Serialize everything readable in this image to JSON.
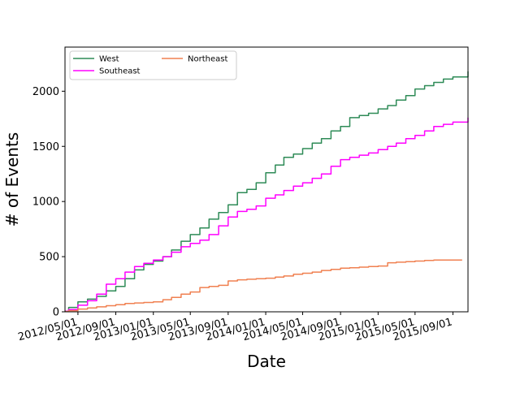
{
  "chart_data": {
    "type": "line",
    "title": "",
    "xlabel": "Date",
    "ylabel": "# of Events",
    "x_ticks": [
      "2012/05/01",
      "2012/09/01",
      "2013/01/01",
      "2013/05/01",
      "2013/09/01",
      "2014/01/01",
      "2014/05/01",
      "2014/09/01",
      "2015/01/01",
      "2015/05/01",
      "2015/09/01"
    ],
    "y_ticks": [
      "0",
      "500",
      "1000",
      "1500",
      "2000"
    ],
    "xlim": [
      "2012-03-20",
      "2015-10-20"
    ],
    "ylim": [
      0,
      2400
    ],
    "grid": false,
    "legend": {
      "placement": "top-left",
      "columns": 2
    },
    "series": [
      {
        "name": "West",
        "color": "#2e8b57",
        "x": [
          "2012-03-20",
          "2012-04-01",
          "2012-05-01",
          "2012-06-01",
          "2012-07-01",
          "2012-08-01",
          "2012-09-01",
          "2012-10-01",
          "2012-11-01",
          "2012-12-01",
          "2013-01-01",
          "2013-02-01",
          "2013-03-01",
          "2013-04-01",
          "2013-05-01",
          "2013-06-01",
          "2013-07-01",
          "2013-08-01",
          "2013-09-01",
          "2013-10-01",
          "2013-11-01",
          "2013-12-01",
          "2014-01-01",
          "2014-02-01",
          "2014-03-01",
          "2014-04-01",
          "2014-05-01",
          "2014-06-01",
          "2014-07-01",
          "2014-08-01",
          "2014-09-01",
          "2014-10-01",
          "2014-11-01",
          "2014-12-01",
          "2015-01-01",
          "2015-02-01",
          "2015-03-01",
          "2015-04-01",
          "2015-05-01",
          "2015-06-01",
          "2015-07-01",
          "2015-08-01",
          "2015-09-01",
          "2015-10-20"
        ],
        "values": [
          5,
          40,
          90,
          115,
          140,
          190,
          230,
          300,
          380,
          430,
          460,
          500,
          560,
          640,
          700,
          760,
          840,
          900,
          970,
          1080,
          1110,
          1170,
          1260,
          1330,
          1400,
          1430,
          1480,
          1530,
          1570,
          1640,
          1680,
          1760,
          1780,
          1800,
          1840,
          1870,
          1920,
          1960,
          2020,
          2050,
          2080,
          2110,
          2130,
          2180
        ]
      },
      {
        "name": "Southeast",
        "color": "#ff00ff",
        "x": [
          "2012-03-20",
          "2012-04-01",
          "2012-05-01",
          "2012-06-01",
          "2012-07-01",
          "2012-08-01",
          "2012-09-01",
          "2012-10-01",
          "2012-11-01",
          "2012-12-01",
          "2013-01-01",
          "2013-02-01",
          "2013-03-01",
          "2013-04-01",
          "2013-05-01",
          "2013-06-01",
          "2013-07-01",
          "2013-08-01",
          "2013-09-01",
          "2013-10-01",
          "2013-11-01",
          "2013-12-01",
          "2014-01-01",
          "2014-02-01",
          "2014-03-01",
          "2014-04-01",
          "2014-05-01",
          "2014-06-01",
          "2014-07-01",
          "2014-08-01",
          "2014-09-01",
          "2014-10-01",
          "2014-11-01",
          "2014-12-01",
          "2015-01-01",
          "2015-02-01",
          "2015-03-01",
          "2015-04-01",
          "2015-05-01",
          "2015-06-01",
          "2015-07-01",
          "2015-08-01",
          "2015-09-01",
          "2015-10-20"
        ],
        "values": [
          5,
          20,
          60,
          100,
          160,
          250,
          300,
          360,
          410,
          440,
          470,
          500,
          540,
          590,
          620,
          650,
          700,
          780,
          860,
          910,
          930,
          960,
          1030,
          1060,
          1100,
          1140,
          1170,
          1210,
          1250,
          1320,
          1380,
          1400,
          1420,
          1440,
          1470,
          1500,
          1530,
          1570,
          1600,
          1640,
          1680,
          1700,
          1720,
          1760
        ]
      },
      {
        "name": "Northeast",
        "color": "#f08050",
        "x": [
          "2012-03-20",
          "2012-04-01",
          "2012-05-01",
          "2012-06-01",
          "2012-07-01",
          "2012-08-01",
          "2012-09-01",
          "2012-10-01",
          "2012-11-01",
          "2012-12-01",
          "2013-01-01",
          "2013-02-01",
          "2013-03-01",
          "2013-04-01",
          "2013-05-01",
          "2013-06-01",
          "2013-07-01",
          "2013-08-01",
          "2013-09-01",
          "2013-10-01",
          "2013-11-01",
          "2013-12-01",
          "2014-01-01",
          "2014-02-01",
          "2014-03-01",
          "2014-04-01",
          "2014-05-01",
          "2014-06-01",
          "2014-07-01",
          "2014-08-01",
          "2014-09-01",
          "2014-10-01",
          "2014-11-01",
          "2014-12-01",
          "2015-01-01",
          "2015-02-01",
          "2015-03-01",
          "2015-04-01",
          "2015-05-01",
          "2015-06-01",
          "2015-07-01",
          "2015-08-01",
          "2015-09-01",
          "2015-10-01"
        ],
        "values": [
          3,
          10,
          25,
          35,
          45,
          55,
          65,
          75,
          80,
          85,
          90,
          110,
          130,
          160,
          180,
          220,
          230,
          240,
          280,
          290,
          295,
          300,
          305,
          315,
          325,
          340,
          350,
          360,
          375,
          385,
          395,
          400,
          405,
          410,
          415,
          445,
          450,
          455,
          460,
          465,
          470,
          470,
          470,
          470
        ]
      }
    ]
  }
}
